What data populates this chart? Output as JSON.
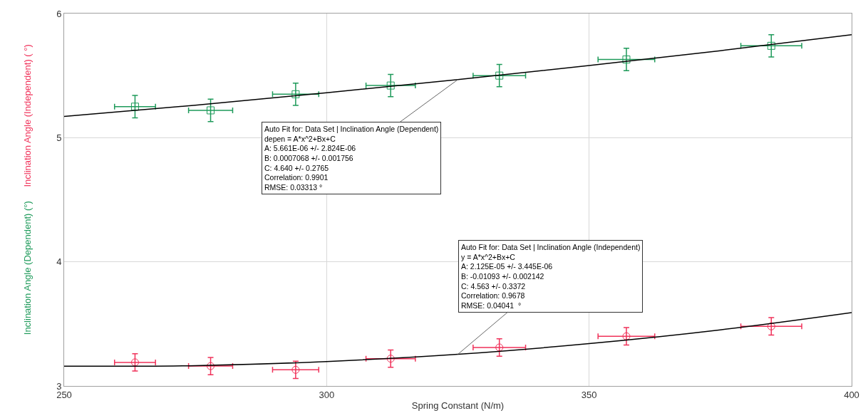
{
  "chart_data": {
    "type": "scatter",
    "xlabel": "Spring Constant (N/m)",
    "xlim": [
      250,
      400
    ],
    "xticks": [
      250,
      300,
      350,
      400
    ],
    "ylim": [
      3,
      6
    ],
    "yticks": [
      3,
      4,
      5,
      6
    ],
    "grid": true,
    "legend": false,
    "series": [
      {
        "name": "Inclination Angle (Dependent) (°)",
        "color": "#1e9a5a",
        "marker": "square",
        "x": [
          263.5,
          277.9,
          294.1,
          312.2,
          332.9,
          357.1,
          384.7
        ],
        "values": [
          5.25,
          5.22,
          5.35,
          5.42,
          5.5,
          5.63,
          5.74
        ],
        "errors": [
          0.09,
          0.09,
          0.09,
          0.09,
          0.09,
          0.09,
          0.09
        ],
        "xerrors": [
          3.9,
          4.2,
          4.4,
          4.7,
          5.0,
          5.4,
          5.8
        ]
      },
      {
        "name": "Inclination Angle (Independent) ( °)",
        "color": "#f0325a",
        "marker": "circle",
        "x": [
          263.5,
          277.9,
          294.1,
          312.2,
          332.9,
          357.1,
          384.7
        ],
        "values": [
          3.19,
          3.16,
          3.13,
          3.22,
          3.31,
          3.4,
          3.48
        ],
        "errors": [
          0.07,
          0.07,
          0.07,
          0.07,
          0.07,
          0.07,
          0.07
        ],
        "xerrors": [
          3.9,
          4.2,
          4.4,
          4.7,
          5.0,
          5.4,
          5.8
        ]
      },
      {
        "type": "line",
        "color": "#000000",
        "marker": "none",
        "x": [
          250,
          275,
          300,
          325,
          350,
          375,
          400
        ],
        "values": [
          5.171,
          5.262,
          5.362,
          5.468,
          5.581,
          5.701,
          5.829
        ]
      },
      {
        "type": "line",
        "color": "#000000",
        "marker": "none",
        "x": [
          250,
          275,
          300,
          325,
          350,
          375,
          400
        ],
        "values": [
          3.159,
          3.164,
          3.197,
          3.255,
          3.341,
          3.452,
          3.591
        ]
      }
    ],
    "annotations": [
      {
        "text": "Auto Fit for: Data Set | Inclination Angle (Dependent)\ndepen = A*x^2+Bx+C\nA: 5.661E-06 +/- 2.824E-06\nB: 0.0007068 +/- 0.001756\nC: 4.640 +/- 0.2765\nCorrelation: 0.9901\nRMSE: 0.03313 °",
        "x": 325,
        "y": 5.468
      },
      {
        "text": "Auto Fit for: Data Set | Inclination Angle (Independent)\ny = A*x^2+Bx+C\nA: 2.125E-05 +/- 3.445E-06\nB: -0.01093 +/- 0.002142\nC: 4.563 +/- 0.3372\nCorrelation: 0.9678\nRMSE: 0.04041  °",
        "x": 325,
        "y": 3.255
      }
    ]
  }
}
